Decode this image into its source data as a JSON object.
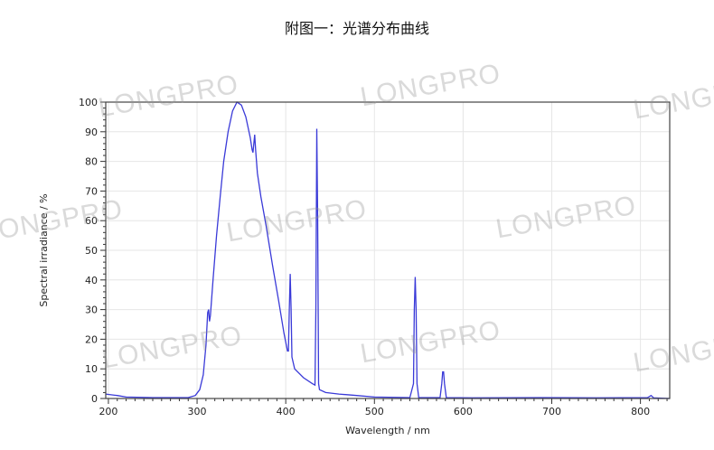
{
  "title": "附图一：光谱分布曲线",
  "watermark": "LONGPRO",
  "chart_data": {
    "type": "line",
    "title": "",
    "xlabel": "Wavelength / nm",
    "ylabel": "Spectral irradiance / %",
    "xlim": [
      197,
      833
    ],
    "ylim": [
      0,
      100
    ],
    "xticks": [
      200,
      300,
      400,
      500,
      600,
      700,
      800
    ],
    "yticks": [
      0,
      10,
      20,
      30,
      40,
      50,
      60,
      70,
      80,
      90,
      100
    ],
    "grid": true,
    "legend": "none",
    "line_color": "#3a3ad8",
    "series": [
      {
        "x": [
          197,
          210,
          220,
          250,
          290,
          298,
          303,
          307,
          310,
          312,
          313,
          314,
          315,
          318,
          322,
          326,
          330,
          335,
          340,
          345,
          350,
          355,
          360,
          362,
          363,
          365,
          366,
          368,
          372,
          378,
          385,
          392,
          398,
          402,
          403,
          404,
          405,
          406,
          407,
          410,
          420,
          430,
          433,
          434,
          435,
          436,
          437,
          438,
          445,
          460,
          480,
          500,
          540,
          544,
          545,
          546,
          547,
          548,
          550,
          574,
          576,
          577,
          578,
          579,
          581,
          610,
          690,
          750,
          808,
          812,
          815,
          833
        ],
        "y": [
          1.5,
          1,
          0.5,
          0.3,
          0.3,
          1,
          3,
          8,
          18,
          29,
          30,
          26,
          28,
          40,
          55,
          68,
          80,
          90,
          97,
          100,
          99,
          95,
          88,
          84,
          83,
          89,
          84,
          76,
          68,
          58,
          45,
          33,
          22,
          16,
          16,
          30,
          42,
          30,
          14,
          10,
          7,
          5,
          4.5,
          30,
          91,
          60,
          5,
          3,
          2,
          1.5,
          1,
          0.5,
          0.3,
          5,
          30,
          41,
          30,
          5,
          0.3,
          0.3,
          5,
          9,
          9,
          5,
          0.3,
          0.2,
          0.3,
          0.2,
          0.3,
          1,
          0.2,
          0
        ]
      }
    ]
  }
}
